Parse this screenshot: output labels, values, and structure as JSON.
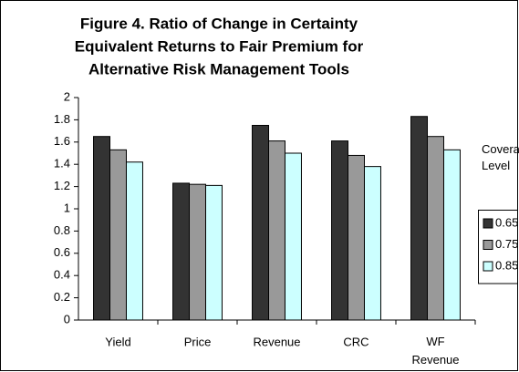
{
  "chart_data": {
    "type": "bar",
    "title": "Figure 4. Ratio of Change in Certainty Equivalent Returns to Fair Premium for Alternative Risk Management Tools",
    "title_lines": [
      "Figure 4. Ratio of Change in Certainty",
      "Equivalent Returns to Fair Premium for",
      "Alternative Risk Management Tools"
    ],
    "categories": [
      "Yield",
      "Price",
      "Revenue",
      "CRC",
      "WF Revenue"
    ],
    "legend_title": "Coverage Level",
    "series": [
      {
        "name": "0.65",
        "color": "#333333",
        "values": [
          1.65,
          1.23,
          1.75,
          1.61,
          1.83
        ]
      },
      {
        "name": "0.75",
        "color": "#999999",
        "values": [
          1.53,
          1.22,
          1.61,
          1.48,
          1.65
        ]
      },
      {
        "name": "0.85",
        "color": "#ccffff",
        "values": [
          1.42,
          1.21,
          1.5,
          1.38,
          1.53
        ]
      }
    ],
    "ylim": [
      0,
      2
    ],
    "yticks": [
      0,
      0.2,
      0.4,
      0.6,
      0.8,
      1,
      1.2,
      1.4,
      1.6,
      1.8,
      2
    ],
    "grid": false,
    "legend": "right"
  }
}
